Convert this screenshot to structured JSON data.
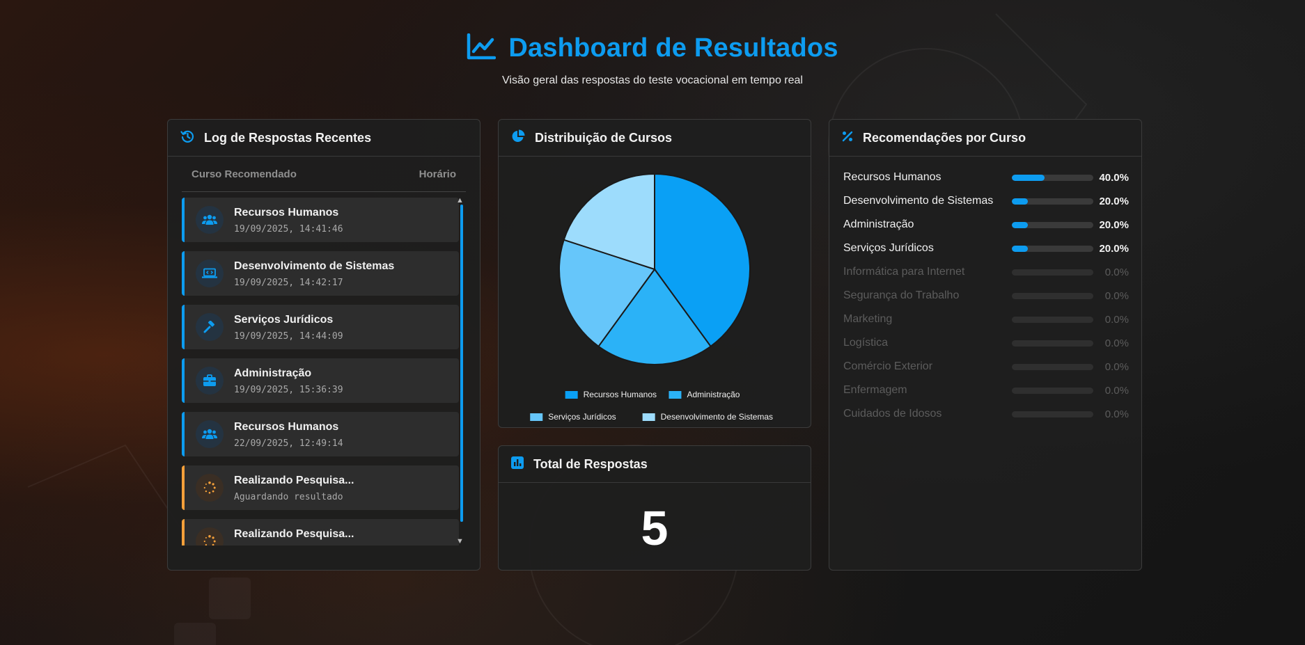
{
  "header": {
    "title": "Dashboard de Resultados",
    "subtitle": "Visão geral das respostas do teste vocacional em tempo real"
  },
  "colors": {
    "accent": "#0d9cf0",
    "pending": "#f5a03a"
  },
  "log": {
    "title": "Log de Respostas Recentes",
    "col_course": "Curso Recomendado",
    "col_time": "Horário",
    "items": [
      {
        "name": "Recursos Humanos",
        "time": "19/09/2025, 14:41:46",
        "icon": "people-icon"
      },
      {
        "name": "Desenvolvimento de Sistemas",
        "time": "19/09/2025, 14:42:17",
        "icon": "laptop-code-icon"
      },
      {
        "name": "Serviços Jurídicos",
        "time": "19/09/2025, 14:44:09",
        "icon": "gavel-icon"
      },
      {
        "name": "Administração",
        "time": "19/09/2025, 15:36:39",
        "icon": "briefcase-icon"
      },
      {
        "name": "Recursos Humanos",
        "time": "22/09/2025, 12:49:14",
        "icon": "people-icon"
      },
      {
        "name": "Realizando Pesquisa...",
        "time": "Aguardando resultado",
        "icon": "spinner-icon"
      },
      {
        "name": "Realizando Pesquisa...",
        "time": "",
        "icon": "spinner-icon"
      }
    ]
  },
  "distribution": {
    "title": "Distribuição de Cursos"
  },
  "chart_data": {
    "type": "pie",
    "categories": [
      "Recursos Humanos",
      "Administração",
      "Serviços Jurídicos",
      "Desenvolvimento de Sistemas"
    ],
    "values": [
      40,
      20,
      20,
      20
    ],
    "colors": [
      "#0aa0f5",
      "#2bb2f7",
      "#66c6fa",
      "#9ddcfc"
    ],
    "legend": [
      "Recursos Humanos",
      "Administração",
      "Serviços Jurídicos",
      "Desenvolvimento de Sistemas"
    ],
    "legend_position": "bottom"
  },
  "total": {
    "title": "Total de Respostas",
    "value": "5"
  },
  "recommendations": {
    "title": "Recomendações por Curso",
    "items": [
      {
        "name": "Recursos Humanos",
        "percent": "40.0%",
        "fraction": 0.4
      },
      {
        "name": "Desenvolvimento de Sistemas",
        "percent": "20.0%",
        "fraction": 0.2
      },
      {
        "name": "Administração",
        "percent": "20.0%",
        "fraction": 0.2
      },
      {
        "name": "Serviços Jurídicos",
        "percent": "20.0%",
        "fraction": 0.2
      },
      {
        "name": "Informática para Internet",
        "percent": "0.0%",
        "fraction": 0
      },
      {
        "name": "Segurança do Trabalho",
        "percent": "0.0%",
        "fraction": 0
      },
      {
        "name": "Marketing",
        "percent": "0.0%",
        "fraction": 0
      },
      {
        "name": "Logística",
        "percent": "0.0%",
        "fraction": 0
      },
      {
        "name": "Comércio Exterior",
        "percent": "0.0%",
        "fraction": 0
      },
      {
        "name": "Enfermagem",
        "percent": "0.0%",
        "fraction": 0
      },
      {
        "name": "Cuidados de Idosos",
        "percent": "0.0%",
        "fraction": 0
      }
    ]
  }
}
